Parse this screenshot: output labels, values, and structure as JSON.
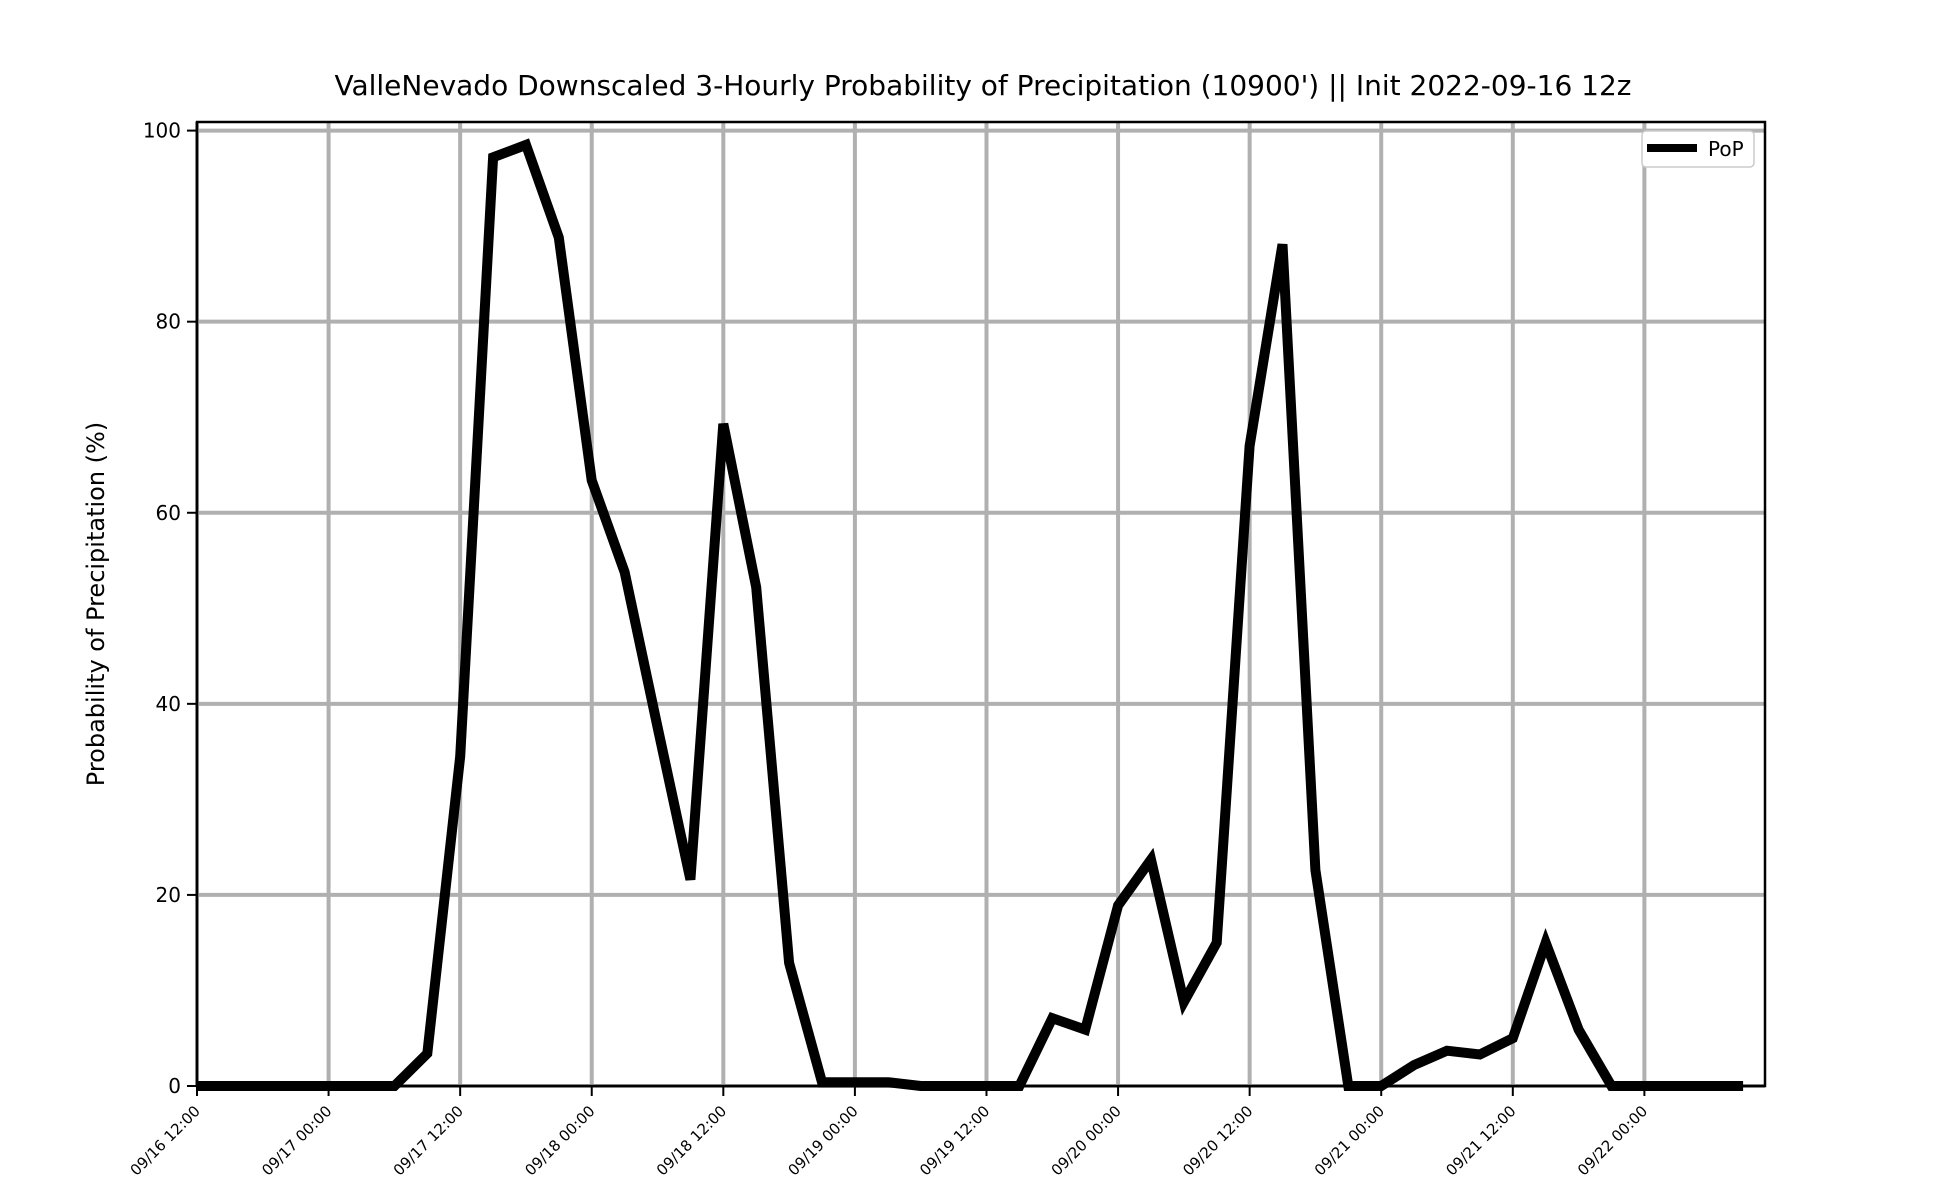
{
  "chart_data": {
    "type": "line",
    "title": "ValleNevado Downscaled 3-Hourly Probability of Precipitation (10900') || Init 2022-09-16 12z",
    "xlabel": "",
    "ylabel": "Probability of Precipitation (%)",
    "ylim": [
      0,
      100
    ],
    "xlim": [
      "2022-09-16 12:00",
      "2022-09-22 11:00"
    ],
    "grid": true,
    "legend_position": "top-right",
    "x_ticks": [
      "09/16 12:00",
      "09/17 00:00",
      "09/17 12:00",
      "09/18 00:00",
      "09/18 12:00",
      "09/19 00:00",
      "09/19 12:00",
      "09/20 00:00",
      "09/20 12:00",
      "09/21 00:00",
      "09/21 12:00",
      "09/22 00:00"
    ],
    "y_ticks": [
      "0",
      "20",
      "40",
      "60",
      "80",
      "100"
    ],
    "x": [
      "2022-09-16 12:00",
      "2022-09-16 15:00",
      "2022-09-16 18:00",
      "2022-09-16 21:00",
      "2022-09-17 00:00",
      "2022-09-17 03:00",
      "2022-09-17 06:00",
      "2022-09-17 09:00",
      "2022-09-17 12:00",
      "2022-09-17 15:00",
      "2022-09-17 18:00",
      "2022-09-17 21:00",
      "2022-09-18 00:00",
      "2022-09-18 03:00",
      "2022-09-18 06:00",
      "2022-09-18 09:00",
      "2022-09-18 12:00",
      "2022-09-18 15:00",
      "2022-09-18 18:00",
      "2022-09-18 21:00",
      "2022-09-19 00:00",
      "2022-09-19 03:00",
      "2022-09-19 06:00",
      "2022-09-19 09:00",
      "2022-09-19 12:00",
      "2022-09-19 15:00",
      "2022-09-19 18:00",
      "2022-09-19 21:00",
      "2022-09-20 00:00",
      "2022-09-20 03:00",
      "2022-09-20 06:00",
      "2022-09-20 09:00",
      "2022-09-20 12:00",
      "2022-09-20 15:00",
      "2022-09-20 18:00",
      "2022-09-20 21:00",
      "2022-09-21 00:00",
      "2022-09-21 03:00",
      "2022-09-21 06:00",
      "2022-09-21 09:00",
      "2022-09-21 12:00",
      "2022-09-21 15:00",
      "2022-09-21 18:00",
      "2022-09-21 21:00",
      "2022-09-22 00:00",
      "2022-09-22 03:00",
      "2022-09-22 06:00",
      "2022-09-22 09:00"
    ],
    "series": [
      {
        "name": "PoP",
        "color": "#000000",
        "values": [
          0,
          0,
          0,
          0,
          0,
          0,
          0,
          3.4,
          34.5,
          97.2,
          98.5,
          88.8,
          63.4,
          53.8,
          37.6,
          21.6,
          69.3,
          52.2,
          12.9,
          0.4,
          0.4,
          0.4,
          0,
          0,
          0,
          0,
          7.1,
          5.9,
          18.9,
          23.7,
          8.8,
          15.0,
          67.0,
          88.1,
          22.6,
          0,
          0,
          2.2,
          3.7,
          3.3,
          5.0,
          15.0,
          5.9,
          0,
          0,
          0,
          0,
          0
        ]
      }
    ]
  }
}
